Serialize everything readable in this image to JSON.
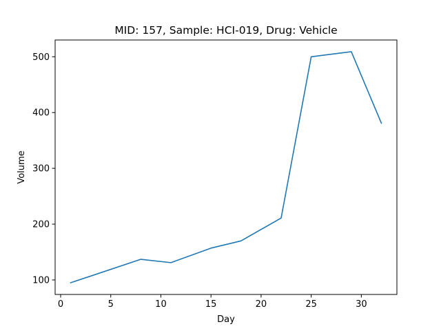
{
  "chart_data": {
    "type": "line",
    "title": "MID: 157, Sample: HCI-019, Drug: Vehicle",
    "xlabel": "Day",
    "ylabel": "Volume",
    "xlim": [
      -0.55,
      33.55
    ],
    "ylim": [
      74,
      530
    ],
    "xticks": [
      0,
      5,
      10,
      15,
      20,
      25,
      30
    ],
    "yticks": [
      100,
      200,
      300,
      400,
      500
    ],
    "grid": false,
    "series": [
      {
        "color": "#1f77b4",
        "x": [
          1,
          8,
          11,
          15,
          18,
          22,
          25,
          29,
          32
        ],
        "y": [
          95,
          137,
          131,
          157,
          170,
          211,
          500,
          509,
          381
        ]
      }
    ]
  }
}
